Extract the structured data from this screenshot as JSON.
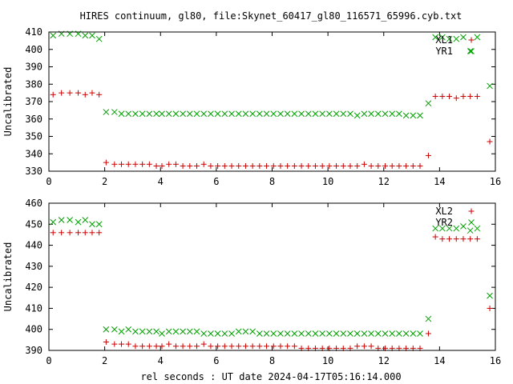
{
  "title": "HIRES continuum, gl80, file:Skynet_60417_gl80_116571_65996.cyb.txt",
  "xlabel": "rel seconds : UT date 2024-04-17T05:16:14.000",
  "chart_data": [
    {
      "type": "scatter",
      "ylabel": "Uncalibrated",
      "xlim": [
        0,
        16
      ],
      "ylim": [
        330,
        410
      ],
      "xticks": [
        0,
        2,
        4,
        6,
        8,
        10,
        12,
        14,
        16
      ],
      "yticks": [
        330,
        340,
        350,
        360,
        370,
        380,
        390,
        400,
        410
      ],
      "legend_position": "top-right",
      "series": [
        {
          "name": "XL1",
          "marker": "plus",
          "color": "#cc0000",
          "x": [
            0.15,
            0.45,
            0.75,
            1.05,
            1.3,
            1.55,
            1.8,
            2.05,
            2.35,
            2.6,
            2.85,
            3.1,
            3.35,
            3.6,
            3.85,
            4.05,
            4.3,
            4.55,
            4.8,
            5.05,
            5.3,
            5.55,
            5.8,
            6.05,
            6.3,
            6.55,
            6.8,
            7.05,
            7.3,
            7.55,
            7.8,
            8.05,
            8.3,
            8.55,
            8.8,
            9.05,
            9.3,
            9.55,
            9.8,
            10.05,
            10.3,
            10.55,
            10.8,
            11.05,
            11.3,
            11.55,
            11.8,
            12.05,
            12.3,
            12.55,
            12.8,
            13.05,
            13.3,
            13.6,
            13.85,
            14.1,
            14.35,
            14.6,
            14.85,
            15.1,
            15.35,
            15.8
          ],
          "y": [
            374,
            375,
            375,
            375,
            374,
            375,
            374,
            335,
            334,
            334,
            334,
            334,
            334,
            334,
            333,
            333,
            334,
            334,
            333,
            333,
            333,
            334,
            333,
            333,
            333,
            333,
            333,
            333,
            333,
            333,
            333,
            333,
            333,
            333,
            333,
            333,
            333,
            333,
            333,
            333,
            333,
            333,
            333,
            333,
            334,
            333,
            333,
            333,
            333,
            333,
            333,
            333,
            333,
            339,
            373,
            373,
            373,
            372,
            373,
            373,
            373,
            347
          ]
        },
        {
          "name": "YR1",
          "marker": "cross",
          "color": "#00a000",
          "x": [
            0.15,
            0.45,
            0.75,
            1.05,
            1.3,
            1.55,
            1.8,
            2.05,
            2.35,
            2.6,
            2.85,
            3.1,
            3.35,
            3.6,
            3.85,
            4.05,
            4.3,
            4.55,
            4.8,
            5.05,
            5.3,
            5.55,
            5.8,
            6.05,
            6.3,
            6.55,
            6.8,
            7.05,
            7.3,
            7.55,
            7.8,
            8.05,
            8.3,
            8.55,
            8.8,
            9.05,
            9.3,
            9.55,
            9.8,
            10.05,
            10.3,
            10.55,
            10.8,
            11.05,
            11.3,
            11.55,
            11.8,
            12.05,
            12.3,
            12.55,
            12.8,
            13.05,
            13.3,
            13.6,
            13.85,
            14.1,
            14.35,
            14.6,
            14.85,
            15.1,
            15.35,
            15.8
          ],
          "y": [
            408,
            409,
            409,
            409,
            408,
            408,
            406,
            364,
            364,
            363,
            363,
            363,
            363,
            363,
            363,
            363,
            363,
            363,
            363,
            363,
            363,
            363,
            363,
            363,
            363,
            363,
            363,
            363,
            363,
            363,
            363,
            363,
            363,
            363,
            363,
            363,
            363,
            363,
            363,
            363,
            363,
            363,
            363,
            362,
            363,
            363,
            363,
            363,
            363,
            363,
            362,
            362,
            362,
            369,
            407,
            407,
            406,
            406,
            407,
            399,
            407,
            379
          ]
        }
      ]
    },
    {
      "type": "scatter",
      "ylabel": "Uncalibrated",
      "xlim": [
        0,
        16
      ],
      "ylim": [
        390,
        460
      ],
      "xticks": [
        0,
        2,
        4,
        6,
        8,
        10,
        12,
        14,
        16
      ],
      "yticks": [
        390,
        400,
        410,
        420,
        430,
        440,
        450,
        460
      ],
      "legend_position": "top-right",
      "series": [
        {
          "name": "XL2",
          "marker": "plus",
          "color": "#cc0000",
          "x": [
            0.15,
            0.45,
            0.75,
            1.05,
            1.3,
            1.55,
            1.8,
            2.05,
            2.35,
            2.6,
            2.85,
            3.1,
            3.35,
            3.6,
            3.85,
            4.05,
            4.3,
            4.55,
            4.8,
            5.05,
            5.3,
            5.55,
            5.8,
            6.05,
            6.3,
            6.55,
            6.8,
            7.05,
            7.3,
            7.55,
            7.8,
            8.05,
            8.3,
            8.55,
            8.8,
            9.05,
            9.3,
            9.55,
            9.8,
            10.05,
            10.3,
            10.55,
            10.8,
            11.05,
            11.3,
            11.55,
            11.8,
            12.05,
            12.3,
            12.55,
            12.8,
            13.05,
            13.3,
            13.6,
            13.85,
            14.1,
            14.35,
            14.6,
            14.85,
            15.1,
            15.35,
            15.8
          ],
          "y": [
            446,
            446,
            446,
            446,
            446,
            446,
            446,
            394,
            393,
            393,
            393,
            392,
            392,
            392,
            392,
            392,
            393,
            392,
            392,
            392,
            392,
            393,
            392,
            392,
            392,
            392,
            392,
            392,
            392,
            392,
            392,
            392,
            392,
            392,
            392,
            391,
            391,
            391,
            391,
            391,
            391,
            391,
            391,
            392,
            392,
            392,
            391,
            391,
            391,
            391,
            391,
            391,
            391,
            398,
            444,
            443,
            443,
            443,
            443,
            443,
            443,
            410
          ]
        },
        {
          "name": "YR2",
          "marker": "cross",
          "color": "#00a000",
          "x": [
            0.15,
            0.45,
            0.75,
            1.05,
            1.3,
            1.55,
            1.8,
            2.05,
            2.35,
            2.6,
            2.85,
            3.1,
            3.35,
            3.6,
            3.85,
            4.05,
            4.3,
            4.55,
            4.8,
            5.05,
            5.3,
            5.55,
            5.8,
            6.05,
            6.3,
            6.55,
            6.8,
            7.05,
            7.3,
            7.55,
            7.8,
            8.05,
            8.3,
            8.55,
            8.8,
            9.05,
            9.3,
            9.55,
            9.8,
            10.05,
            10.3,
            10.55,
            10.8,
            11.05,
            11.3,
            11.55,
            11.8,
            12.05,
            12.3,
            12.55,
            12.8,
            13.05,
            13.3,
            13.6,
            13.85,
            14.1,
            14.35,
            14.6,
            14.85,
            15.1,
            15.35,
            15.8
          ],
          "y": [
            451,
            452,
            452,
            451,
            452,
            450,
            450,
            400,
            400,
            399,
            400,
            399,
            399,
            399,
            399,
            398,
            399,
            399,
            399,
            399,
            399,
            398,
            398,
            398,
            398,
            398,
            399,
            399,
            399,
            398,
            398,
            398,
            398,
            398,
            398,
            398,
            398,
            398,
            398,
            398,
            398,
            398,
            398,
            398,
            398,
            398,
            398,
            398,
            398,
            398,
            398,
            398,
            398,
            405,
            448,
            448,
            448,
            448,
            449,
            447,
            448,
            416
          ]
        }
      ]
    }
  ]
}
